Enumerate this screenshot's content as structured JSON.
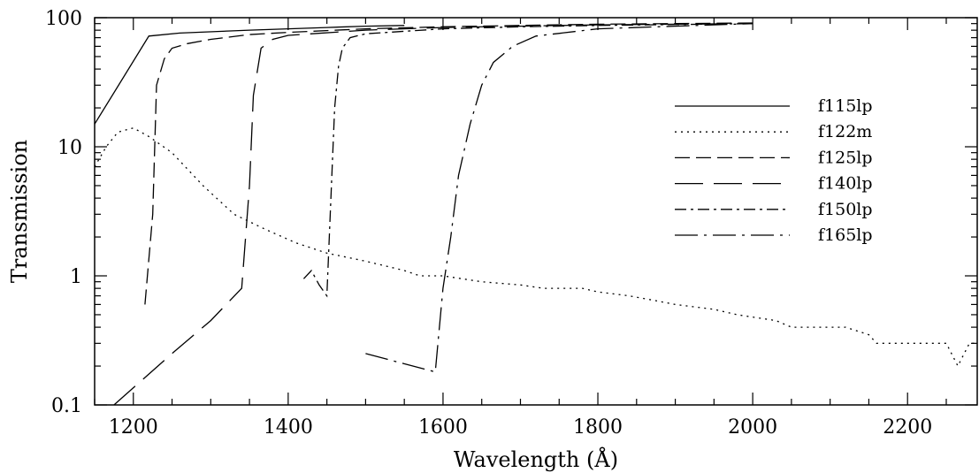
{
  "chart_data": {
    "type": "line",
    "title": "",
    "xlabel": "Wavelength (Å)",
    "ylabel": "Transmission",
    "xlim": [
      1150,
      2290
    ],
    "ylim": [
      0.1,
      100
    ],
    "yscale": "log",
    "grid": false,
    "legend_position": "right",
    "x_ticks": [
      1200,
      1400,
      1600,
      1800,
      2000,
      2200
    ],
    "x_tick_labels": [
      "1200",
      "1400",
      "1600",
      "1800",
      "2000",
      "2200"
    ],
    "y_ticks": [
      0.1,
      1,
      10,
      100
    ],
    "y_tick_labels": [
      "0.1",
      "1",
      "10",
      "100"
    ],
    "series": [
      {
        "name": "f115lp",
        "dash": "none",
        "points": [
          [
            1150,
            15
          ],
          [
            1220,
            72
          ],
          [
            1260,
            76
          ],
          [
            1350,
            80
          ],
          [
            1450,
            84
          ],
          [
            1500,
            86
          ],
          [
            1550,
            87
          ]
        ]
      },
      {
        "name": "f122m",
        "dash": "2 5",
        "points": [
          [
            1150,
            7
          ],
          [
            1165,
            10
          ],
          [
            1180,
            13
          ],
          [
            1200,
            14
          ],
          [
            1220,
            12
          ],
          [
            1250,
            9
          ],
          [
            1290,
            5
          ],
          [
            1330,
            3
          ],
          [
            1370,
            2.3
          ],
          [
            1410,
            1.8
          ],
          [
            1450,
            1.5
          ],
          [
            1500,
            1.3
          ],
          [
            1550,
            1.1
          ],
          [
            1570,
            1.0
          ],
          [
            1600,
            1.0
          ],
          [
            1650,
            0.9
          ],
          [
            1700,
            0.85
          ],
          [
            1730,
            0.8
          ],
          [
            1780,
            0.8
          ],
          [
            1800,
            0.75
          ],
          [
            1840,
            0.7
          ],
          [
            1870,
            0.65
          ],
          [
            1900,
            0.6
          ],
          [
            1950,
            0.55
          ],
          [
            1980,
            0.5
          ],
          [
            2030,
            0.45
          ],
          [
            2050,
            0.4
          ],
          [
            2120,
            0.4
          ],
          [
            2150,
            0.35
          ],
          [
            2160,
            0.3
          ],
          [
            2250,
            0.3
          ],
          [
            2265,
            0.2
          ],
          [
            2280,
            0.3
          ],
          [
            2290,
            0.3
          ]
        ]
      },
      {
        "name": "f125lp",
        "dash": "17 7",
        "points": [
          [
            1215,
            0.6
          ],
          [
            1225,
            3
          ],
          [
            1230,
            30
          ],
          [
            1240,
            48
          ],
          [
            1250,
            58
          ],
          [
            1270,
            63
          ],
          [
            1300,
            68
          ],
          [
            1350,
            74
          ],
          [
            1400,
            77
          ],
          [
            1500,
            82
          ],
          [
            1600,
            85
          ],
          [
            1700,
            87
          ],
          [
            1800,
            89
          ],
          [
            1900,
            90
          ],
          [
            2000,
            91
          ]
        ]
      },
      {
        "name": "f140lp",
        "dash": "32 12",
        "points": [
          [
            1175,
            0.1
          ],
          [
            1250,
            0.25
          ],
          [
            1300,
            0.45
          ],
          [
            1340,
            0.8
          ],
          [
            1350,
            5
          ],
          [
            1355,
            25
          ],
          [
            1365,
            58
          ],
          [
            1380,
            68
          ],
          [
            1400,
            73
          ],
          [
            1500,
            80
          ],
          [
            1600,
            84
          ],
          [
            1700,
            86
          ],
          [
            1800,
            88
          ],
          [
            2000,
            90
          ]
        ]
      },
      {
        "name": "f150lp",
        "dash": "13 5 3 5",
        "points": [
          [
            1420,
            0.95
          ],
          [
            1430,
            1.1
          ],
          [
            1440,
            0.85
          ],
          [
            1450,
            0.7
          ],
          [
            1460,
            20
          ],
          [
            1465,
            42
          ],
          [
            1470,
            58
          ],
          [
            1480,
            70
          ],
          [
            1500,
            75
          ],
          [
            1600,
            82
          ],
          [
            1700,
            85
          ],
          [
            1800,
            87
          ],
          [
            2000,
            90
          ]
        ]
      },
      {
        "name": "f165lp",
        "dash": "26 7 3 7",
        "points": [
          [
            1500,
            0.25
          ],
          [
            1590,
            0.18
          ],
          [
            1600,
            0.8
          ],
          [
            1610,
            2
          ],
          [
            1620,
            6
          ],
          [
            1635,
            15
          ],
          [
            1650,
            30
          ],
          [
            1665,
            45
          ],
          [
            1690,
            60
          ],
          [
            1720,
            72
          ],
          [
            1800,
            82
          ],
          [
            1900,
            86
          ],
          [
            2000,
            90
          ]
        ]
      }
    ]
  }
}
